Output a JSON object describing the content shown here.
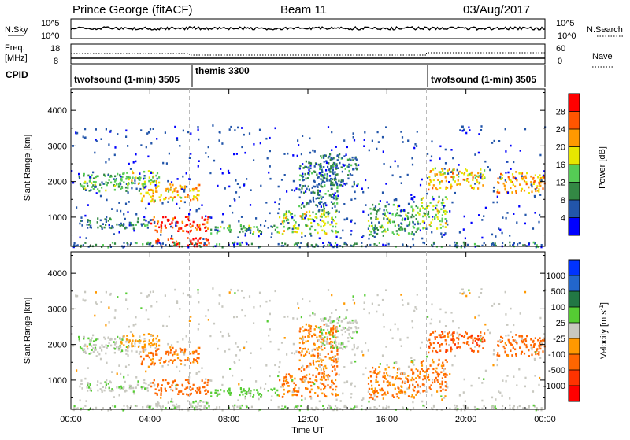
{
  "header": {
    "station": "Prince George (fitACF)",
    "beam": "Beam 11",
    "date": "03/Aug/2017"
  },
  "top_strip": {
    "nsky_label": "N.Sky",
    "nsearch_label": "N.Search",
    "nsky_ticks": [
      "10^5",
      "10^0"
    ],
    "nsearch_ticks": [
      "10^5",
      "10^0"
    ],
    "freq_label_1": "Freq.",
    "freq_label_2": "[MHz]",
    "freq_ticks": [
      "18",
      "8"
    ],
    "nave_label": "Nave",
    "nave_ticks": [
      "60",
      "0"
    ],
    "cpid_label": "CPID",
    "cpid_segments": [
      {
        "label": "twofsound (1-min) 3505",
        "start_hour": 0,
        "end_hour": 6
      },
      {
        "label": "themis 3300",
        "start_hour": 6,
        "end_hour": 18
      },
      {
        "label": "twofsound (1-min) 3505",
        "start_hour": 18,
        "end_hour": 24
      }
    ]
  },
  "power_panel": {
    "ylabel": "Slant Range [km]",
    "colorbar_label": "Power [dB]",
    "colorbar_ticks": [
      "28",
      "24",
      "20",
      "16",
      "12",
      "8",
      "4"
    ],
    "colorbar_colors": [
      "#ff0000",
      "#ff5500",
      "#ff9900",
      "#e6e600",
      "#55cc55",
      "#338844",
      "#2255aa",
      "#0000ff"
    ]
  },
  "velocity_panel": {
    "ylabel": "Slant Range [km]",
    "colorbar_label_main": "Velocity [m s",
    "colorbar_label_sup": "-1",
    "colorbar_label_end": "]",
    "colorbar_ticks": [
      "1000",
      "500",
      "100",
      "25",
      "-25",
      "-100",
      "-500",
      "-1000"
    ],
    "colorbar_colors": [
      "#0033ff",
      "#2266cc",
      "#227744",
      "#55cc33",
      "#c8c8c0",
      "#ff9900",
      "#ff6600",
      "#ff3300",
      "#ff0000"
    ]
  },
  "x_axis": {
    "label": "Time UT",
    "ticks": [
      "00:00",
      "04:00",
      "08:00",
      "12:00",
      "16:00",
      "20:00",
      "00:00"
    ]
  },
  "chart_data": {
    "type": "heatmap",
    "title": "Prince George (fitACF)",
    "subtitle": "Beam 11",
    "xlabel": "Time UT",
    "ylabel": "Slant Range [km]",
    "xlim_hours": [
      0,
      24
    ],
    "ylim_km": [
      180,
      4600
    ],
    "x_tick_hours": [
      0,
      4,
      8,
      12,
      16,
      20,
      24
    ],
    "y_ticks_km": [
      1000,
      2000,
      3000,
      4000
    ],
    "panels": [
      "power",
      "velocity"
    ],
    "regions": [
      {
        "t0": 0.3,
        "t1": 3.5,
        "r0": 1750,
        "r1": 2250,
        "power": 12,
        "velocity": 10
      },
      {
        "t0": 2.5,
        "t1": 4.5,
        "r0": 1950,
        "r1": 2350,
        "power": 16,
        "velocity": -60
      },
      {
        "t0": 3.5,
        "t1": 6.5,
        "r0": 1450,
        "r1": 1950,
        "power": 20,
        "velocity": -150
      },
      {
        "t0": 4.0,
        "t1": 7.0,
        "r0": 600,
        "r1": 1050,
        "power": 28,
        "velocity": -300
      },
      {
        "t0": 4.0,
        "t1": 7.0,
        "r0": 200,
        "r1": 450,
        "power": 28,
        "velocity": 10
      },
      {
        "t0": 0.3,
        "t1": 4.0,
        "r0": 700,
        "r1": 1000,
        "power": 8,
        "velocity": 10
      },
      {
        "t0": 7.0,
        "t1": 10.5,
        "r0": 550,
        "r1": 800,
        "power": 12,
        "velocity": 60
      },
      {
        "t0": 10.5,
        "t1": 13.5,
        "r0": 550,
        "r1": 1200,
        "power": 16,
        "velocity": -120
      },
      {
        "t0": 11.5,
        "t1": 13.5,
        "r0": 1200,
        "r1": 2600,
        "power": 8,
        "velocity": -100
      },
      {
        "t0": 12.5,
        "t1": 14.5,
        "r0": 1900,
        "r1": 2800,
        "power": 8,
        "velocity": 10
      },
      {
        "t0": 15.0,
        "t1": 17.5,
        "r0": 500,
        "r1": 1400,
        "power": 12,
        "velocity": -120
      },
      {
        "t0": 17.5,
        "t1": 19.0,
        "r0": 700,
        "r1": 1600,
        "power": 16,
        "velocity": -150
      },
      {
        "t0": 18.0,
        "t1": 21.0,
        "r0": 1800,
        "r1": 2400,
        "power": 20,
        "velocity": -400
      },
      {
        "t0": 21.5,
        "t1": 24.0,
        "r0": 1700,
        "r1": 2300,
        "power": 22,
        "velocity": -300
      },
      {
        "t0": 0.0,
        "t1": 24.0,
        "r0": 180,
        "r1": 320,
        "power": 8,
        "velocity": 10
      }
    ]
  }
}
